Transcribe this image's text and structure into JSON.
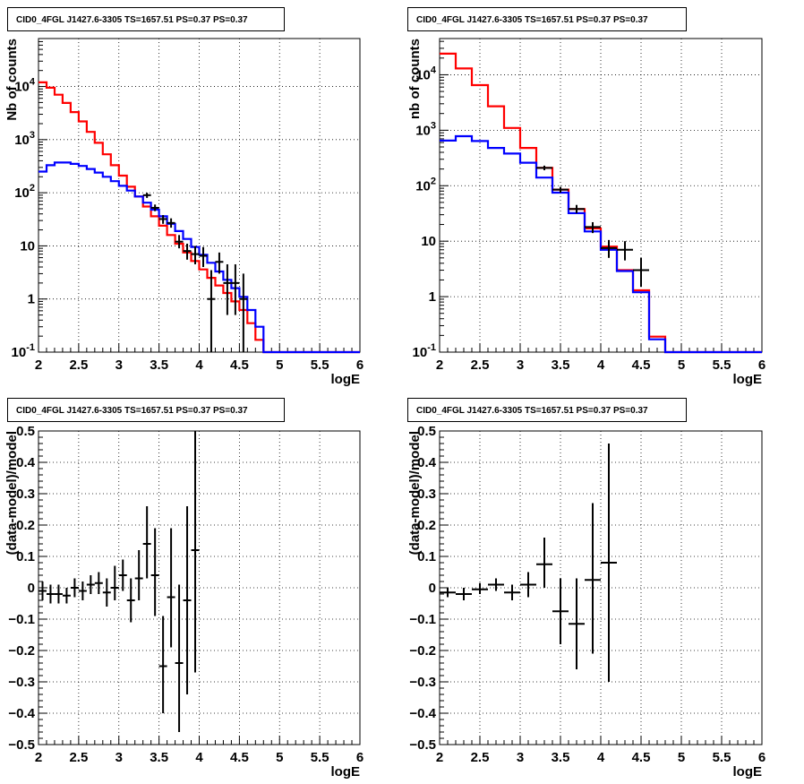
{
  "chart_data": [
    {
      "type": "histogram",
      "title": "CID0_4FGL J1427.6-3305 TS=1657.51 PS=0.37 PS=0.37",
      "xlabel": "logE",
      "ylabel": "Nb of counts",
      "xlim": [
        2,
        6
      ],
      "ylim": [
        0.1,
        80000
      ],
      "yscale": "log",
      "grid": true,
      "x_ticks": [
        "2",
        "2.5",
        "3",
        "3.5",
        "4",
        "4.5",
        "5",
        "5.5",
        "6"
      ],
      "y_ticks": [
        {
          "v": 0.1,
          "label": "10^-1"
        },
        {
          "v": 1,
          "label": "1"
        },
        {
          "v": 10,
          "label": "10"
        },
        {
          "v": 100,
          "label": "10^2"
        },
        {
          "v": 1000,
          "label": "10^3"
        },
        {
          "v": 10000,
          "label": "10^4"
        }
      ],
      "series": [
        {
          "color": "#ff0000",
          "kind": "step",
          "edges": [
            2.0,
            2.1,
            2.2,
            2.3,
            2.4,
            2.5,
            2.6,
            2.7,
            2.8,
            2.9,
            3.0,
            3.1,
            3.2,
            3.3,
            3.4,
            3.5,
            3.6,
            3.7,
            3.8,
            3.9,
            4.0,
            4.1,
            4.2,
            4.3,
            4.4,
            4.5,
            4.6,
            4.7,
            4.8,
            4.9,
            5.0,
            5.1,
            5.2,
            5.3,
            5.4,
            5.5,
            5.6,
            5.7,
            5.8,
            5.9,
            6.0
          ],
          "values": [
            12000,
            9500,
            7000,
            4900,
            3300,
            2200,
            1400,
            870,
            530,
            330,
            210,
            130,
            85,
            55,
            36,
            24,
            16,
            11,
            7.5,
            5.2,
            3.6,
            2.5,
            1.8,
            1.3,
            0.9,
            0.62,
            0.35,
            0.17,
            0.1,
            0.1,
            0.1,
            0.1,
            0.1,
            0.1,
            0.1,
            0.1,
            0.1,
            0.1,
            0.1,
            0.1
          ]
        },
        {
          "color": "#0000ff",
          "kind": "step",
          "edges": [
            2.0,
            2.1,
            2.2,
            2.3,
            2.4,
            2.5,
            2.6,
            2.7,
            2.8,
            2.9,
            3.0,
            3.1,
            3.2,
            3.3,
            3.4,
            3.5,
            3.6,
            3.7,
            3.8,
            3.9,
            4.0,
            4.1,
            4.2,
            4.3,
            4.4,
            4.5,
            4.6,
            4.7,
            4.8,
            4.9,
            5.0,
            5.1,
            5.2,
            5.3,
            5.4,
            5.5,
            5.6,
            5.7,
            5.8,
            5.9,
            6.0
          ],
          "values": [
            250,
            330,
            370,
            370,
            350,
            320,
            280,
            240,
            200,
            165,
            135,
            110,
            85,
            65,
            48,
            36,
            26,
            19,
            13.5,
            9.5,
            6.8,
            4.8,
            3.3,
            2.3,
            1.6,
            1.1,
            0.62,
            0.3,
            0.1,
            0.1,
            0.1,
            0.1,
            0.1,
            0.1,
            0.1,
            0.1,
            0.1,
            0.1,
            0.1,
            0.1
          ]
        },
        {
          "color": "#000000",
          "kind": "errorbars",
          "points": [
            {
              "x": 3.35,
              "y": 90,
              "lo": 80,
              "hi": 100,
              "xerr": 0.05
            },
            {
              "x": 3.45,
              "y": 52,
              "lo": 45,
              "hi": 60,
              "xerr": 0.05
            },
            {
              "x": 3.55,
              "y": 32,
              "lo": 26,
              "hi": 38,
              "xerr": 0.05
            },
            {
              "x": 3.65,
              "y": 27,
              "lo": 22,
              "hi": 33,
              "xerr": 0.05
            },
            {
              "x": 3.75,
              "y": 12,
              "lo": 9,
              "hi": 16,
              "xerr": 0.05
            },
            {
              "x": 3.85,
              "y": 8,
              "lo": 5.5,
              "hi": 11,
              "xerr": 0.05
            },
            {
              "x": 3.95,
              "y": 7,
              "lo": 4.5,
              "hi": 10,
              "xerr": 0.05
            },
            {
              "x": 4.05,
              "y": 6.5,
              "lo": 4,
              "hi": 9.5,
              "xerr": 0.05
            },
            {
              "x": 4.15,
              "y": 1,
              "lo": 0.1,
              "hi": 3.5,
              "xerr": 0.05
            },
            {
              "x": 4.25,
              "y": 5,
              "lo": 3,
              "hi": 7.5,
              "xerr": 0.05
            },
            {
              "x": 4.35,
              "y": 2,
              "lo": 0.5,
              "hi": 4.5,
              "xerr": 0.05
            },
            {
              "x": 4.45,
              "y": 2,
              "lo": 0.5,
              "hi": 4.5,
              "xerr": 0.05
            },
            {
              "x": 4.55,
              "y": 1,
              "lo": 0.1,
              "hi": 3,
              "xerr": 0.05
            }
          ]
        }
      ]
    },
    {
      "type": "histogram",
      "title": "CID0_4FGL J1427.6-3305 TS=1657.51 PS=0.37 PS=0.37",
      "xlabel": "logE",
      "ylabel": "nb of counts",
      "xlim": [
        2,
        6
      ],
      "ylim": [
        0.1,
        45000
      ],
      "yscale": "log",
      "grid": true,
      "x_ticks": [
        "2",
        "2.5",
        "3",
        "3.5",
        "4",
        "4.5",
        "5",
        "5.5",
        "6"
      ],
      "y_ticks": [
        {
          "v": 0.1,
          "label": "10^-1"
        },
        {
          "v": 1,
          "label": "1"
        },
        {
          "v": 10,
          "label": "10"
        },
        {
          "v": 100,
          "label": "10^2"
        },
        {
          "v": 1000,
          "label": "10^3"
        },
        {
          "v": 10000,
          "label": "10^4"
        }
      ],
      "series": [
        {
          "color": "#ff0000",
          "kind": "step",
          "edges": [
            2.0,
            2.2,
            2.4,
            2.6,
            2.8,
            3.0,
            3.2,
            3.4,
            3.6,
            3.8,
            4.0,
            4.2,
            4.4,
            4.6,
            4.8,
            5.0,
            5.2,
            5.4,
            5.6,
            5.8,
            6.0
          ],
          "values": [
            24000,
            13000,
            6500,
            2700,
            1100,
            480,
            210,
            85,
            38,
            17,
            8,
            3,
            1.3,
            0.19,
            0.1,
            0.1,
            0.1,
            0.1,
            0.1,
            0.1
          ]
        },
        {
          "color": "#0000ff",
          "kind": "step",
          "edges": [
            2.0,
            2.2,
            2.4,
            2.6,
            2.8,
            3.0,
            3.2,
            3.4,
            3.6,
            3.8,
            4.0,
            4.2,
            4.4,
            4.6,
            4.8,
            5.0,
            5.2,
            5.4,
            5.6,
            5.8,
            6.0
          ],
          "values": [
            650,
            780,
            640,
            480,
            380,
            260,
            140,
            75,
            32,
            15,
            7,
            2.9,
            1.2,
            0.17,
            0.1,
            0.1,
            0.1,
            0.1,
            0.1,
            0.1
          ]
        },
        {
          "color": "#000000",
          "kind": "errorbars",
          "points": [
            {
              "x": 3.3,
              "y": 210,
              "lo": 190,
              "hi": 230,
              "xerr": 0.1
            },
            {
              "x": 3.5,
              "y": 85,
              "lo": 75,
              "hi": 95,
              "xerr": 0.1
            },
            {
              "x": 3.7,
              "y": 38,
              "lo": 32,
              "hi": 45,
              "xerr": 0.1
            },
            {
              "x": 3.9,
              "y": 18,
              "lo": 14,
              "hi": 22,
              "xerr": 0.1
            },
            {
              "x": 4.1,
              "y": 7.5,
              "lo": 5,
              "hi": 10.5,
              "xerr": 0.1
            },
            {
              "x": 4.3,
              "y": 7,
              "lo": 4.5,
              "hi": 10,
              "xerr": 0.1
            },
            {
              "x": 4.5,
              "y": 3,
              "lo": 1.5,
              "hi": 5,
              "xerr": 0.1
            }
          ]
        }
      ]
    },
    {
      "type": "scatter",
      "title": "CID0_4FGL J1427.6-3305 TS=1657.51 PS=0.37 PS=0.37",
      "xlabel": "logE",
      "ylabel": "(data-model)/model",
      "xlim": [
        2,
        6
      ],
      "ylim": [
        -0.5,
        0.5
      ],
      "yscale": "linear",
      "grid": true,
      "x_ticks": [
        "2",
        "2.5",
        "3",
        "3.5",
        "4",
        "4.5",
        "5",
        "5.5",
        "6"
      ],
      "y_ticks": [
        {
          "v": -0.5,
          "label": "−0.5"
        },
        {
          "v": -0.4,
          "label": "−0.4"
        },
        {
          "v": -0.3,
          "label": "−0.3"
        },
        {
          "v": -0.2,
          "label": "−0.2"
        },
        {
          "v": -0.1,
          "label": "−0.1"
        },
        {
          "v": 0,
          "label": "0"
        },
        {
          "v": 0.1,
          "label": "0.1"
        },
        {
          "v": 0.2,
          "label": "0.2"
        },
        {
          "v": 0.3,
          "label": "0.3"
        },
        {
          "v": 0.4,
          "label": "0.4"
        },
        {
          "v": 0.5,
          "label": "0.5"
        }
      ],
      "series": [
        {
          "color": "#000000",
          "kind": "errorbars",
          "points": [
            {
              "x": 2.05,
              "y": -0.01,
              "lo": -0.04,
              "hi": 0.02,
              "xerr": 0.05
            },
            {
              "x": 2.15,
              "y": -0.02,
              "lo": -0.05,
              "hi": 0.01,
              "xerr": 0.05
            },
            {
              "x": 2.25,
              "y": -0.02,
              "lo": -0.05,
              "hi": 0.01,
              "xerr": 0.05
            },
            {
              "x": 2.35,
              "y": -0.025,
              "lo": -0.05,
              "hi": 0.0,
              "xerr": 0.05
            },
            {
              "x": 2.45,
              "y": 0.0,
              "lo": -0.03,
              "hi": 0.03,
              "xerr": 0.05
            },
            {
              "x": 2.55,
              "y": -0.01,
              "lo": -0.04,
              "hi": 0.02,
              "xerr": 0.05
            },
            {
              "x": 2.65,
              "y": 0.01,
              "lo": -0.02,
              "hi": 0.04,
              "xerr": 0.05
            },
            {
              "x": 2.75,
              "y": 0.015,
              "lo": -0.02,
              "hi": 0.05,
              "xerr": 0.05
            },
            {
              "x": 2.85,
              "y": -0.015,
              "lo": -0.06,
              "hi": 0.03,
              "xerr": 0.05
            },
            {
              "x": 2.95,
              "y": 0.0,
              "lo": -0.04,
              "hi": 0.07,
              "xerr": 0.05
            },
            {
              "x": 3.05,
              "y": 0.04,
              "lo": -0.01,
              "hi": 0.09,
              "xerr": 0.05
            },
            {
              "x": 3.15,
              "y": -0.04,
              "lo": -0.11,
              "hi": 0.03,
              "xerr": 0.05
            },
            {
              "x": 3.25,
              "y": 0.03,
              "lo": -0.04,
              "hi": 0.12,
              "xerr": 0.05
            },
            {
              "x": 3.35,
              "y": 0.14,
              "lo": 0.03,
              "hi": 0.26,
              "xerr": 0.05
            },
            {
              "x": 3.45,
              "y": 0.04,
              "lo": -0.09,
              "hi": 0.19,
              "xerr": 0.05
            },
            {
              "x": 3.55,
              "y": -0.25,
              "lo": -0.4,
              "hi": -0.09,
              "xerr": 0.05
            },
            {
              "x": 3.65,
              "y": -0.03,
              "lo": -0.19,
              "hi": 0.19,
              "xerr": 0.05
            },
            {
              "x": 3.75,
              "y": -0.24,
              "lo": -0.46,
              "hi": 0.01,
              "xerr": 0.05
            },
            {
              "x": 3.85,
              "y": -0.04,
              "lo": -0.34,
              "hi": 0.26,
              "xerr": 0.05
            },
            {
              "x": 3.95,
              "y": 0.12,
              "lo": -0.27,
              "hi": 0.5,
              "xerr": 0.05
            }
          ]
        }
      ]
    },
    {
      "type": "scatter",
      "title": "CID0_4FGL J1427.6-3305 TS=1657.51 PS=0.37 PS=0.37",
      "xlabel": "logE",
      "ylabel": "(data-model)/model",
      "xlim": [
        2,
        6
      ],
      "ylim": [
        -0.5,
        0.5
      ],
      "yscale": "linear",
      "grid": true,
      "x_ticks": [
        "2",
        "2.5",
        "3",
        "3.5",
        "4",
        "4.5",
        "5",
        "5.5",
        "6"
      ],
      "y_ticks": [
        {
          "v": -0.5,
          "label": "−0.5"
        },
        {
          "v": -0.4,
          "label": "−0.4"
        },
        {
          "v": -0.3,
          "label": "−0.3"
        },
        {
          "v": -0.2,
          "label": "−0.2"
        },
        {
          "v": -0.1,
          "label": "−0.1"
        },
        {
          "v": 0,
          "label": "0"
        },
        {
          "v": 0.1,
          "label": "0.1"
        },
        {
          "v": 0.2,
          "label": "0.2"
        },
        {
          "v": 0.3,
          "label": "0.3"
        },
        {
          "v": 0.4,
          "label": "0.4"
        },
        {
          "v": 0.5,
          "label": "0.5"
        }
      ],
      "series": [
        {
          "color": "#000000",
          "kind": "errorbars",
          "points": [
            {
              "x": 2.1,
              "y": -0.015,
              "lo": -0.03,
              "hi": 0.0,
              "xerr": 0.1
            },
            {
              "x": 2.3,
              "y": -0.02,
              "lo": -0.04,
              "hi": 0.0,
              "xerr": 0.1
            },
            {
              "x": 2.5,
              "y": -0.005,
              "lo": -0.02,
              "hi": 0.015,
              "xerr": 0.1
            },
            {
              "x": 2.7,
              "y": 0.01,
              "lo": -0.01,
              "hi": 0.03,
              "xerr": 0.1
            },
            {
              "x": 2.9,
              "y": -0.015,
              "lo": -0.04,
              "hi": 0.01,
              "xerr": 0.1
            },
            {
              "x": 3.1,
              "y": 0.01,
              "lo": -0.03,
              "hi": 0.05,
              "xerr": 0.1
            },
            {
              "x": 3.3,
              "y": 0.075,
              "lo": 0.0,
              "hi": 0.16,
              "xerr": 0.1
            },
            {
              "x": 3.5,
              "y": -0.075,
              "lo": -0.18,
              "hi": 0.03,
              "xerr": 0.1
            },
            {
              "x": 3.7,
              "y": -0.115,
              "lo": -0.26,
              "hi": 0.03,
              "xerr": 0.1
            },
            {
              "x": 3.9,
              "y": 0.025,
              "lo": -0.21,
              "hi": 0.27,
              "xerr": 0.1
            },
            {
              "x": 4.1,
              "y": 0.08,
              "lo": -0.3,
              "hi": 0.46,
              "xerr": 0.1
            }
          ]
        }
      ]
    }
  ]
}
